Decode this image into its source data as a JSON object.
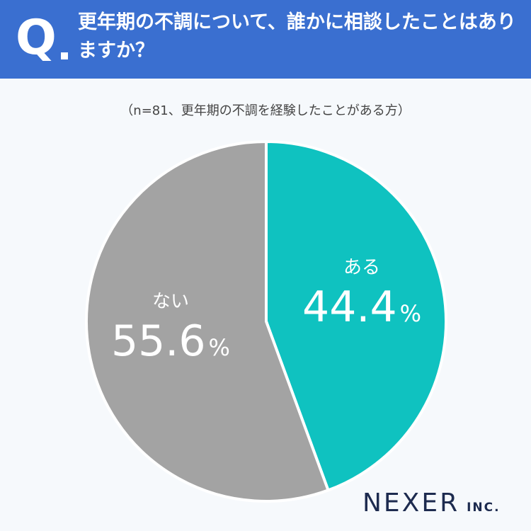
{
  "question": {
    "mark": "Q",
    "text": "更年期の不調について、誰かに相談したことはありますか？"
  },
  "subtitle": "（n=81、更年期の不調を経験したことがある方）",
  "chart_data": {
    "type": "pie",
    "title": "",
    "slices": [
      {
        "label": "ある",
        "value": 44.4,
        "color": "#0fc2c0"
      },
      {
        "label": "ない",
        "value": 55.6,
        "color": "#a3a3a3"
      }
    ],
    "unit": "%"
  },
  "logo": {
    "name": "NEXER",
    "suffix": "INC."
  }
}
